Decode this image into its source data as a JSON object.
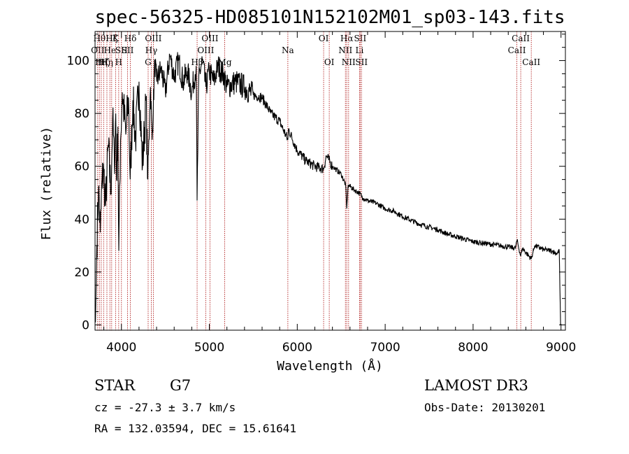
{
  "chart_data": {
    "type": "line",
    "title": "spec-56325-HD085101N152102M01_sp03-143.fits",
    "xlabel": "Wavelength (Å)",
    "ylabel": "Flux (relative)",
    "xlim": [
      3700,
      9050
    ],
    "ylim": [
      -2,
      111
    ],
    "xticks": [
      4000,
      5000,
      6000,
      7000,
      8000,
      9000
    ],
    "yticks": [
      0,
      20,
      40,
      60,
      80,
      100
    ],
    "series": [
      {
        "name": "spectrum",
        "x": [
          3705,
          3720,
          3740,
          3760,
          3780,
          3800,
          3820,
          3850,
          3880,
          3900,
          3920,
          3935,
          3945,
          3960,
          3970,
          3990,
          4010,
          4050,
          4080,
          4100,
          4130,
          4160,
          4200,
          4240,
          4280,
          4300,
          4330,
          4350,
          4380,
          4400,
          4450,
          4500,
          4550,
          4600,
          4650,
          4700,
          4750,
          4800,
          4850,
          4861,
          4880,
          4920,
          4960,
          5000,
          5050,
          5100,
          5170,
          5200,
          5300,
          5400,
          5500,
          5600,
          5700,
          5800,
          5893,
          5900,
          6000,
          6100,
          6200,
          6300,
          6330,
          6400,
          6500,
          6550,
          6563,
          6580,
          6650,
          6700,
          6750,
          6800,
          6900,
          7000,
          7100,
          7200,
          7300,
          7400,
          7500,
          7600,
          7700,
          7800,
          7900,
          8000,
          8100,
          8200,
          8300,
          8400,
          8480,
          8500,
          8542,
          8560,
          8662,
          8700,
          8800,
          8900,
          8950,
          8980,
          8995
        ],
        "values": [
          1,
          30,
          52,
          35,
          55,
          58,
          45,
          68,
          50,
          78,
          60,
          80,
          55,
          75,
          28,
          70,
          88,
          72,
          86,
          55,
          85,
          70,
          92,
          60,
          85,
          55,
          90,
          70,
          100,
          92,
          97,
          88,
          102,
          94,
          100,
          92,
          96,
          88,
          98,
          47,
          94,
          100,
          90,
          96,
          92,
          98,
          94,
          90,
          92,
          90,
          87,
          86,
          80,
          77,
          70,
          74,
          66,
          62,
          60,
          59,
          64,
          60,
          57,
          53,
          44,
          53,
          51,
          50,
          48,
          47,
          46,
          44,
          43,
          41,
          39.5,
          38,
          37,
          36,
          34.5,
          33.5,
          32.5,
          31.5,
          31,
          30.5,
          30,
          29.5,
          29,
          32,
          26,
          29,
          25,
          30,
          28.5,
          28,
          27,
          28,
          0
        ]
      }
    ],
    "line_markers": [
      {
        "wave": 3730,
        "label": "OII",
        "row": 2
      },
      {
        "wave": 3750,
        "label": "Hθ",
        "row": 1
      },
      {
        "wave": 3771,
        "label": "Hη",
        "row": 3
      },
      {
        "wave": 3798,
        "label": "Hζ",
        "row": 3
      },
      {
        "wave": 3835,
        "label": "Hη",
        "row": 3
      },
      {
        "wave": 3869,
        "label": "He",
        "row": 2
      },
      {
        "wave": 3889,
        "label": "Hζ",
        "row": 1
      },
      {
        "wave": 3934,
        "label": "K",
        "row": 1
      },
      {
        "wave": 3969,
        "label": "H",
        "row": 3
      },
      {
        "wave": 4000,
        "label": "SII",
        "row": 2
      },
      {
        "wave": 4070,
        "label": "SII",
        "row": 2
      },
      {
        "wave": 4102,
        "label": "Hδ",
        "row": 1
      },
      {
        "wave": 4304,
        "label": "G",
        "row": 3
      },
      {
        "wave": 4340,
        "label": "Hγ",
        "row": 2
      },
      {
        "wave": 4363,
        "label": "OIII",
        "row": 1
      },
      {
        "wave": 4861,
        "label": "Hβ",
        "row": 3
      },
      {
        "wave": 4959,
        "label": "OIII",
        "row": 2
      },
      {
        "wave": 5007,
        "label": "OIII",
        "row": 1
      },
      {
        "wave": 5175,
        "label": "Mg",
        "row": 3
      },
      {
        "wave": 5893,
        "label": "Na",
        "row": 2
      },
      {
        "wave": 6300,
        "label": "OI",
        "row": 1
      },
      {
        "wave": 6364,
        "label": "OI",
        "row": 3
      },
      {
        "wave": 6548,
        "label": "NII",
        "row": 2
      },
      {
        "wave": 6563,
        "label": "Hα",
        "row": 1
      },
      {
        "wave": 6584,
        "label": "NII",
        "row": 3
      },
      {
        "wave": 6708,
        "label": "Li",
        "row": 2
      },
      {
        "wave": 6716,
        "label": "SII",
        "row": 1
      },
      {
        "wave": 6731,
        "label": "SII",
        "row": 3
      },
      {
        "wave": 8498,
        "label": "CaII",
        "row": 2
      },
      {
        "wave": 8542,
        "label": "CaII",
        "row": 1
      },
      {
        "wave": 8662,
        "label": "CaII",
        "row": 3
      }
    ]
  },
  "info": {
    "object_class": "STAR",
    "subclass": "G7",
    "survey": "LAMOST DR3",
    "redshift": "cz = -27.3 ± 3.7 km/s",
    "obs_date": "Obs-Date: 20130201",
    "coords": "RA = 132.03594, DEC =  15.61641"
  },
  "colors": {
    "spectrum": "#000000",
    "line_marker": "#b22222",
    "axes": "#000000"
  }
}
